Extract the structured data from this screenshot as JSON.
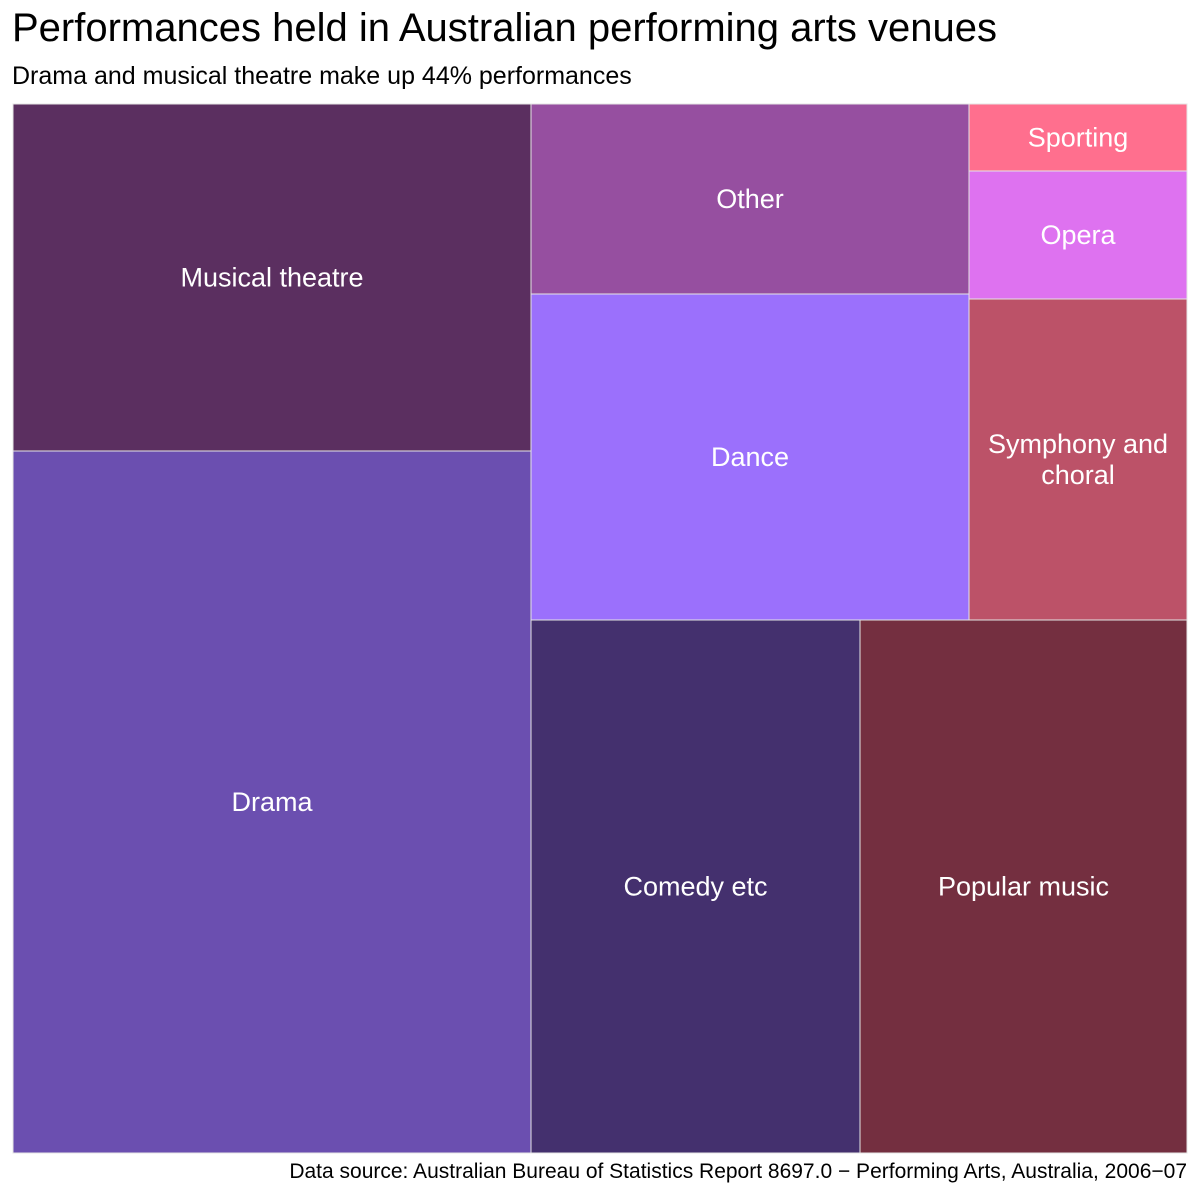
{
  "chart_data": {
    "type": "treemap",
    "title": "Performances held in Australian performing arts venues",
    "subtitle": "Drama and musical theatre make up 44% performances",
    "caption": "Data source: Australian Bureau of Statistics Report 8697.0 − Performing Arts, Australia, 2006−07",
    "tiles": [
      {
        "label": "Drama",
        "lines": [
          "Drama"
        ],
        "color": "#6B4FB0"
      },
      {
        "label": "Musical theatre",
        "lines": [
          "Musical theatre"
        ],
        "color": "#5B2F60"
      },
      {
        "label": "Comedy etc",
        "lines": [
          "Comedy etc"
        ],
        "color": "#44306E"
      },
      {
        "label": "Popular music",
        "lines": [
          "Popular music"
        ],
        "color": "#742F40"
      },
      {
        "label": "Dance",
        "lines": [
          "Dance"
        ],
        "color": "#9B70FC"
      },
      {
        "label": "Other",
        "lines": [
          "Other"
        ],
        "color": "#964FA0"
      },
      {
        "label": "Symphony and choral",
        "lines": [
          "Symphony and",
          "choral"
        ],
        "color": "#BC5268"
      },
      {
        "label": "Opera",
        "lines": [
          "Opera"
        ],
        "color": "#DE72F0"
      },
      {
        "label": "Sporting",
        "lines": [
          "Sporting"
        ],
        "color": "#FF6F8E"
      }
    ]
  }
}
